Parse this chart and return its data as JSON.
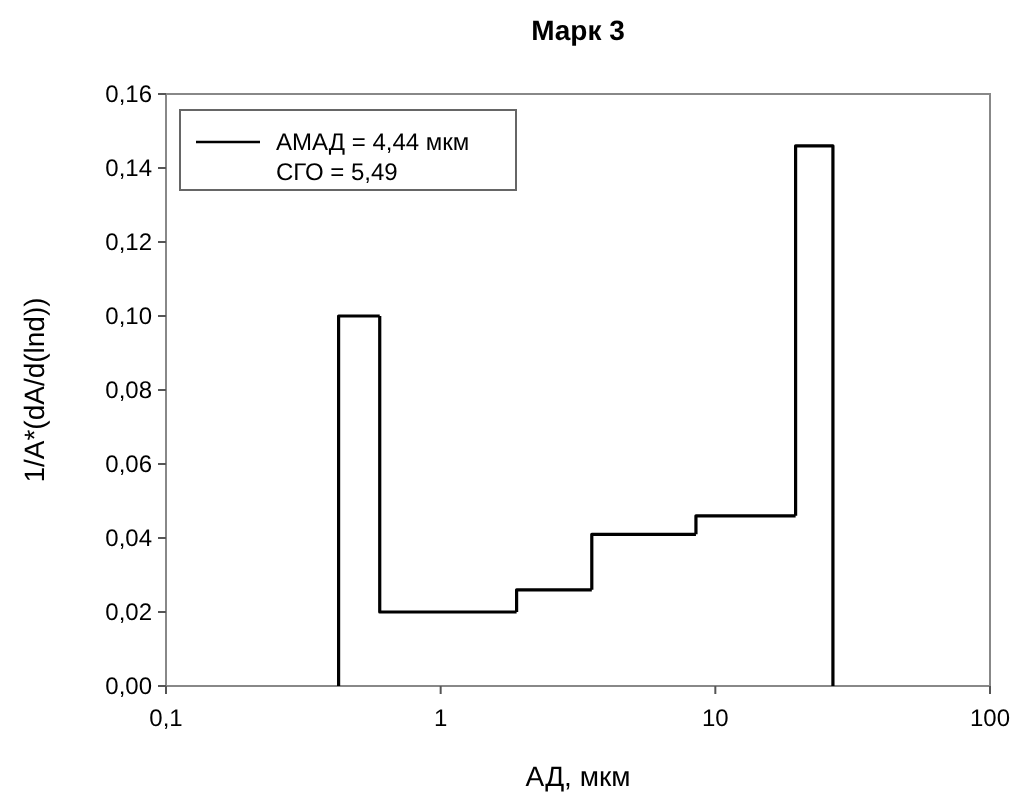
{
  "chart_data": {
    "type": "histogram",
    "title": "Марк 3",
    "xlabel": "АД, мкм",
    "ylabel": "1/A*(dA/d(lnd))",
    "bins": [
      0.425,
      0.6,
      1.89,
      3.55,
      8.5,
      19.6,
      26.8
    ],
    "series": [
      {
        "name": "АМАД = 4,44 мкм",
        "color": "#000000",
        "values": [
          0.1,
          0.02,
          0.026,
          0.041,
          0.046,
          0.146
        ]
      }
    ],
    "annotations": [
      "СГО = 5,49"
    ],
    "log": "x",
    "xlim": [
      0.1,
      100
    ],
    "xticks": [
      {
        "value": 0.1,
        "label": "0,1"
      },
      1,
      10,
      100
    ],
    "ylim": [
      0,
      0.16
    ],
    "yticks": [
      {
        "value": 0,
        "label": "0,00"
      },
      {
        "value": 0.02,
        "label": "0,02"
      },
      {
        "value": 0.04,
        "label": "0,04"
      },
      {
        "value": 0.06,
        "label": "0,06"
      },
      {
        "value": 0.08,
        "label": "0,08"
      },
      {
        "value": 0.1,
        "label": "0,10"
      },
      {
        "value": 0.12,
        "label": "0,12"
      },
      {
        "value": 0.14,
        "label": "0,14"
      },
      {
        "value": 0.16,
        "label": "0,16"
      }
    ],
    "grid": false,
    "legend": "top left"
  }
}
